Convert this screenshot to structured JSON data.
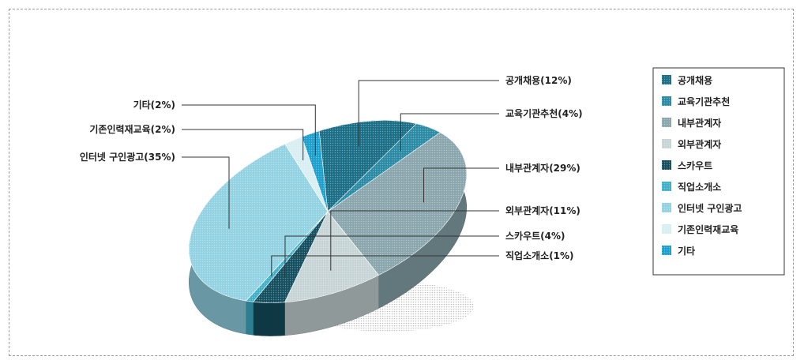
{
  "chart_data": {
    "type": "pie",
    "title": "",
    "legend_position": "right",
    "slices": [
      {
        "name": "공개채용",
        "label": "공개채용(12%)",
        "value": 12,
        "color": "#1a6e86"
      },
      {
        "name": "교육기관추천",
        "label": "교육기관추천(4%)",
        "value": 4,
        "color": "#2a8aa4"
      },
      {
        "name": "내부관계자",
        "label": "내부관계자(29%)",
        "value": 29,
        "color": "#8aa6ad"
      },
      {
        "name": "외부관계자",
        "label": "외부관계자(11%)",
        "value": 11,
        "color": "#c7d4d6"
      },
      {
        "name": "스카우트",
        "label": "스카우트(4%)",
        "value": 4,
        "color": "#144f5f"
      },
      {
        "name": "직업소개소",
        "label": "직업소개소(1%)",
        "value": 1,
        "color": "#3fb0c8"
      },
      {
        "name": "인터넷 구인광고",
        "label": "인터넷 구인광고(35%)",
        "value": 35,
        "color": "#92d2e2"
      },
      {
        "name": "기존인력재교육",
        "label": "기존인력재교육(2%)",
        "value": 2,
        "color": "#d8eef2"
      },
      {
        "name": "기타",
        "label": "기타(2%)",
        "value": 2,
        "color": "#1b9fcc"
      }
    ]
  }
}
